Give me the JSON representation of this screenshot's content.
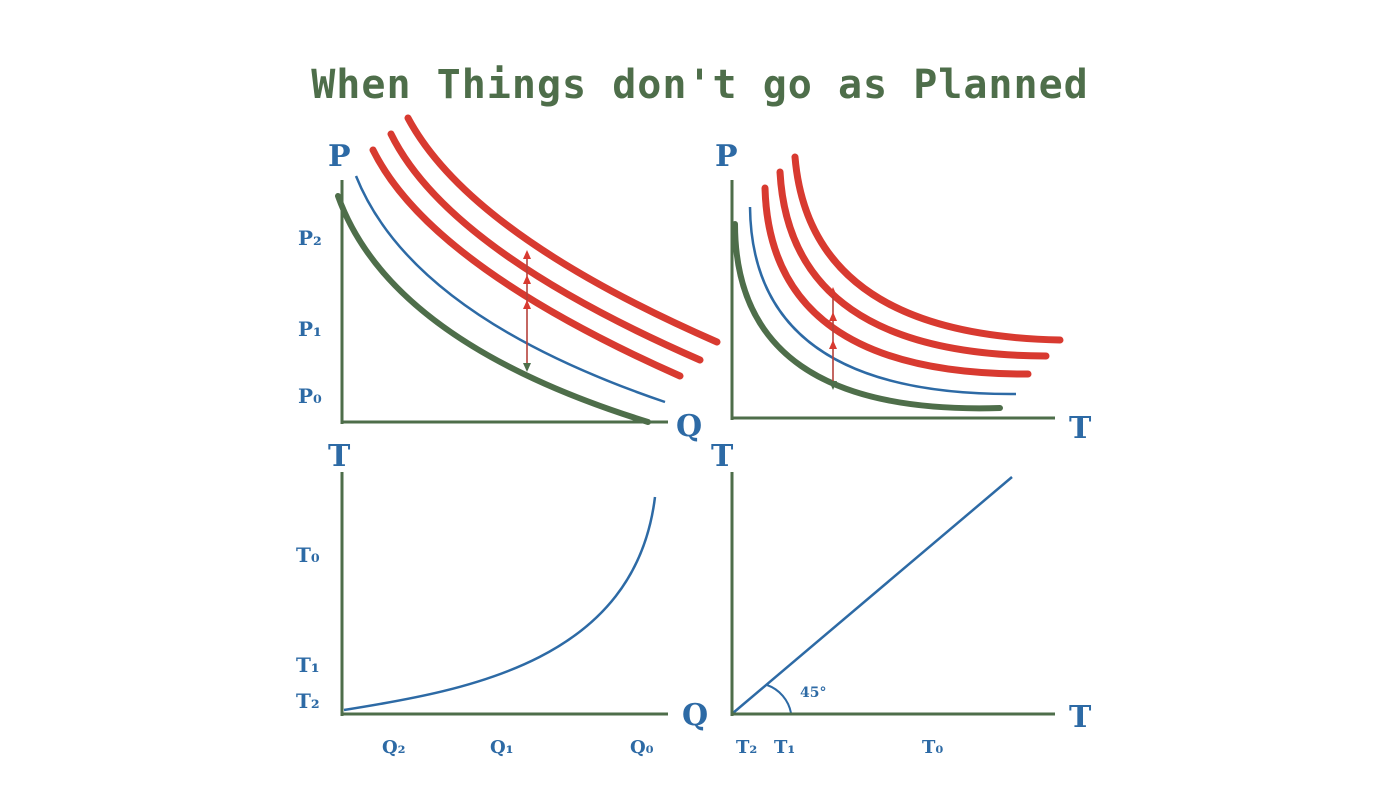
{
  "title": "When Things don't go as Planned",
  "colors": {
    "axis": "#4e6e4a",
    "blue": "#2d6aa5",
    "red": "#d83a30",
    "title": "#4e6e4a",
    "label": "#2d6aa5"
  },
  "panels": {
    "top_left": {
      "y_axis_label": "P",
      "x_axis_label": "Q",
      "y_ticks": [
        "P₂",
        "P₁",
        "P₀"
      ]
    },
    "top_right": {
      "y_axis_label": "P",
      "x_axis_label": "T"
    },
    "bottom_left": {
      "y_axis_label": "T",
      "x_axis_label": "Q",
      "y_ticks": [
        "T₀",
        "T₁",
        "T₂"
      ],
      "x_ticks": [
        "Q₂",
        "Q₁",
        "Q₀"
      ]
    },
    "bottom_right": {
      "y_axis_label": "T",
      "x_axis_label": "T",
      "x_ticks": [
        "T₂",
        "T₁",
        "T₀"
      ],
      "angle_label": "45°"
    }
  }
}
